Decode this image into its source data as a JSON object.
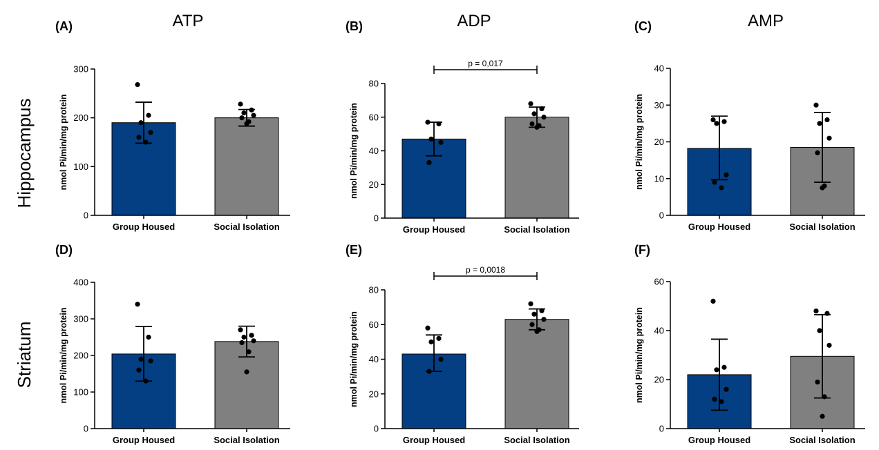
{
  "column_titles": [
    "ATP",
    "ADP",
    "AMP"
  ],
  "row_labels": [
    "Hippocampus",
    "Striatum"
  ],
  "colors": {
    "group_housed": "#033f82",
    "social_isolation": "#808080",
    "points": "#000000",
    "axis": "#000000"
  },
  "chart_data": [
    {
      "panel": "(A)",
      "type": "bar",
      "ylabel": "nmol Pi/min/mg protein",
      "ylim": [
        0,
        300
      ],
      "yticks": [
        0,
        100,
        200,
        300
      ],
      "categories": [
        "Group Housed",
        "Social Isolation"
      ],
      "values": [
        190,
        200
      ],
      "error_upper": [
        232,
        217
      ],
      "error_lower": [
        148,
        183
      ],
      "points": [
        [
          268,
          205,
          190,
          170,
          160,
          150
        ],
        [
          228,
          216,
          210,
          205,
          200,
          192,
          188
        ]
      ],
      "significance": null
    },
    {
      "panel": "(B)",
      "type": "bar",
      "ylabel": "nmol Pi/min/mg protein",
      "ylim": [
        0,
        80
      ],
      "yticks": [
        0,
        20,
        40,
        60,
        80
      ],
      "categories": [
        "Group Housed",
        "Social Isolation"
      ],
      "values": [
        47,
        60
      ],
      "error_upper": [
        57,
        66
      ],
      "error_lower": [
        37,
        54
      ],
      "points": [
        [
          57,
          56,
          47,
          45,
          33
        ],
        [
          68,
          65,
          62,
          60,
          56,
          55,
          54
        ]
      ],
      "significance": "p = 0,017"
    },
    {
      "panel": "(C)",
      "type": "bar",
      "ylabel": "nmol Pi/min/mg protein",
      "ylim": [
        0,
        40
      ],
      "yticks": [
        0,
        10,
        20,
        30,
        40
      ],
      "categories": [
        "Group Housed",
        "Social Isolation"
      ],
      "values": [
        18.2,
        18.5
      ],
      "error_upper": [
        27,
        28
      ],
      "error_lower": [
        9.7,
        9
      ],
      "points": [
        [
          26,
          25.5,
          25,
          11,
          9,
          7.5
        ],
        [
          30,
          26,
          25,
          21,
          17,
          8,
          7.5
        ]
      ],
      "significance": null
    },
    {
      "panel": "(D)",
      "type": "bar",
      "ylabel": "nmol Pi/min/mg protein",
      "ylim": [
        0,
        400
      ],
      "yticks": [
        0,
        100,
        200,
        300,
        400
      ],
      "categories": [
        "Group Housed",
        "Social Isolation"
      ],
      "values": [
        204,
        238
      ],
      "error_upper": [
        279,
        280
      ],
      "error_lower": [
        130,
        196
      ],
      "points": [
        [
          340,
          250,
          190,
          185,
          160,
          130
        ],
        [
          270,
          255,
          250,
          240,
          235,
          210,
          155
        ]
      ],
      "significance": null
    },
    {
      "panel": "(E)",
      "type": "bar",
      "ylabel": "nmol Pi/min/mg protein",
      "ylim": [
        0,
        80
      ],
      "yticks": [
        0,
        20,
        40,
        60,
        80
      ],
      "categories": [
        "Group Housed",
        "Social Isolation"
      ],
      "values": [
        43,
        63
      ],
      "error_upper": [
        54,
        69
      ],
      "error_lower": [
        33,
        57
      ],
      "points": [
        [
          58,
          52,
          50,
          40,
          33
        ],
        [
          72,
          68,
          66,
          63,
          60,
          57,
          56
        ]
      ],
      "significance": "p = 0,0018"
    },
    {
      "panel": "(F)",
      "type": "bar",
      "ylabel": "nmol Pi/min/mg protein",
      "ylim": [
        0,
        60
      ],
      "yticks": [
        0,
        20,
        40,
        60
      ],
      "categories": [
        "Group Housed",
        "Social Isolation"
      ],
      "values": [
        22,
        29.5
      ],
      "error_upper": [
        36.5,
        46.5
      ],
      "error_lower": [
        7.5,
        12.5
      ],
      "points": [
        [
          52,
          25,
          24,
          16,
          12,
          11
        ],
        [
          48,
          47,
          40,
          34,
          19,
          13,
          5
        ]
      ],
      "significance": null
    }
  ]
}
